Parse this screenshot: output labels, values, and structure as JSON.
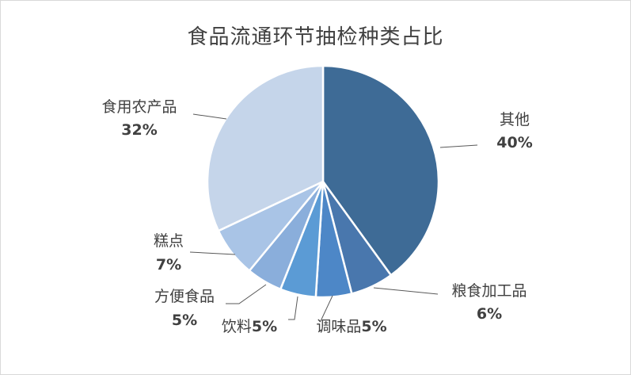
{
  "chart_data": {
    "type": "pie",
    "title": "食品流通环节抽检种类占比",
    "start_angle_deg": 0,
    "direction": "clockwise",
    "slices": [
      {
        "label": "其他",
        "value": 40,
        "display": "40%",
        "color": "#3e6b96"
      },
      {
        "label": "粮食加工品",
        "value": 6,
        "display": "6%",
        "color": "#4977ad"
      },
      {
        "label": "调味品",
        "value": 5,
        "display": "5%",
        "color": "#4d87c7"
      },
      {
        "label": "饮料",
        "value": 5,
        "display": "5%",
        "color": "#5b9bd5"
      },
      {
        "label": "方便食品",
        "value": 5,
        "display": "5%",
        "color": "#8aaedb"
      },
      {
        "label": "糕点",
        "value": 7,
        "display": "7%",
        "color": "#a9c4e6"
      },
      {
        "label": "食用农产品",
        "value": 32,
        "display": "32%",
        "color": "#c5d5ea"
      }
    ]
  }
}
